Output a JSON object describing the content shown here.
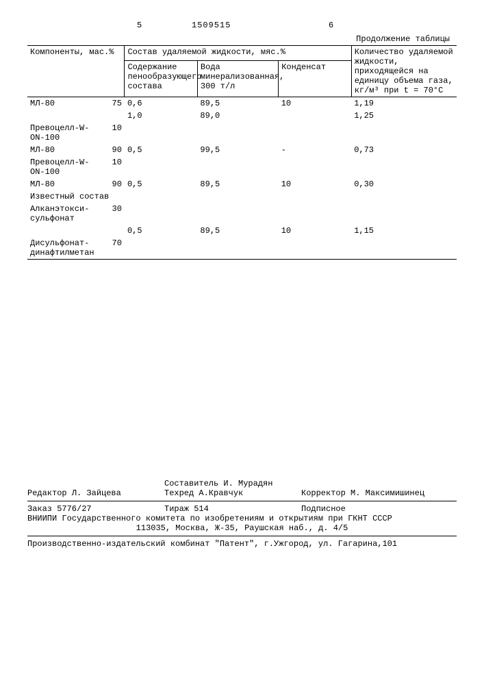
{
  "header": {
    "left_num": "5",
    "doc_num": "1509515",
    "right_num": "6",
    "continuation": "Продолжение таблицы"
  },
  "table": {
    "col_components": "Компоненты, мас.%",
    "col_composition": "Состав удаляемой жидкости, мяс.%",
    "col_foam": "Содержание пенообразующего состава",
    "col_water": "Вода минерализованная, 300 т/л",
    "col_condensate": "Конденсат",
    "col_quantity": "Количество удаляемой жидкости, приходящейся на единицу объема газа, кг/м³ при t = 70°C",
    "known_label": "Известный состав",
    "rows": [
      {
        "comp": "МЛ-80",
        "pct": "75",
        "foam": "0,6",
        "water": "89,5",
        "cond": "10",
        "qty": "1,19"
      },
      {
        "comp": "",
        "pct": "",
        "foam": "1,0",
        "water": "89,0",
        "cond": "",
        "qty": "1,25"
      },
      {
        "comp": "Превоцелл-W-ON-100",
        "pct": "10",
        "foam": "",
        "water": "",
        "cond": "",
        "qty": ""
      },
      {
        "comp": "МЛ-80",
        "pct": "90",
        "foam": "0,5",
        "water": "99,5",
        "cond": "-",
        "qty": "0,73"
      },
      {
        "comp": "Превоцелл-W-ON-100",
        "pct": "10",
        "foam": "",
        "water": "",
        "cond": "",
        "qty": ""
      },
      {
        "comp": "МЛ-80",
        "pct": "90",
        "foam": "0,5",
        "water": "89,5",
        "cond": "10",
        "qty": "0,30"
      }
    ],
    "known_rows": [
      {
        "comp": "Алканэтокси-сульфонат",
        "pct": "30",
        "foam": "",
        "water": "",
        "cond": "",
        "qty": ""
      },
      {
        "comp": "",
        "pct": "",
        "foam": "0,5",
        "water": "89,5",
        "cond": "10",
        "qty": "1,15"
      },
      {
        "comp": "Дисульфонат-динафтилметан",
        "pct": "70",
        "foam": "",
        "water": "",
        "cond": "",
        "qty": ""
      }
    ]
  },
  "footer": {
    "compiler": "Составитель И. Мурадян",
    "editor": "Редактор Л. Зайцева",
    "techred": "Техред А.Кравчук",
    "corrector": "Корректор М. Максимишинец",
    "order": "Заказ 5776/27",
    "tirage": "Тираж 514",
    "subscription": "Подписное",
    "vniipi": "ВНИИПИ Государственного комитета по изобретениям и открытиям при ГКНТ СССР",
    "address1": "113035, Москва, Ж-35, Раушская наб., д. 4/5",
    "publisher": "Производственно-издательский комбинат \"Патент\", г.Ужгород, ул. Гагарина,101"
  }
}
